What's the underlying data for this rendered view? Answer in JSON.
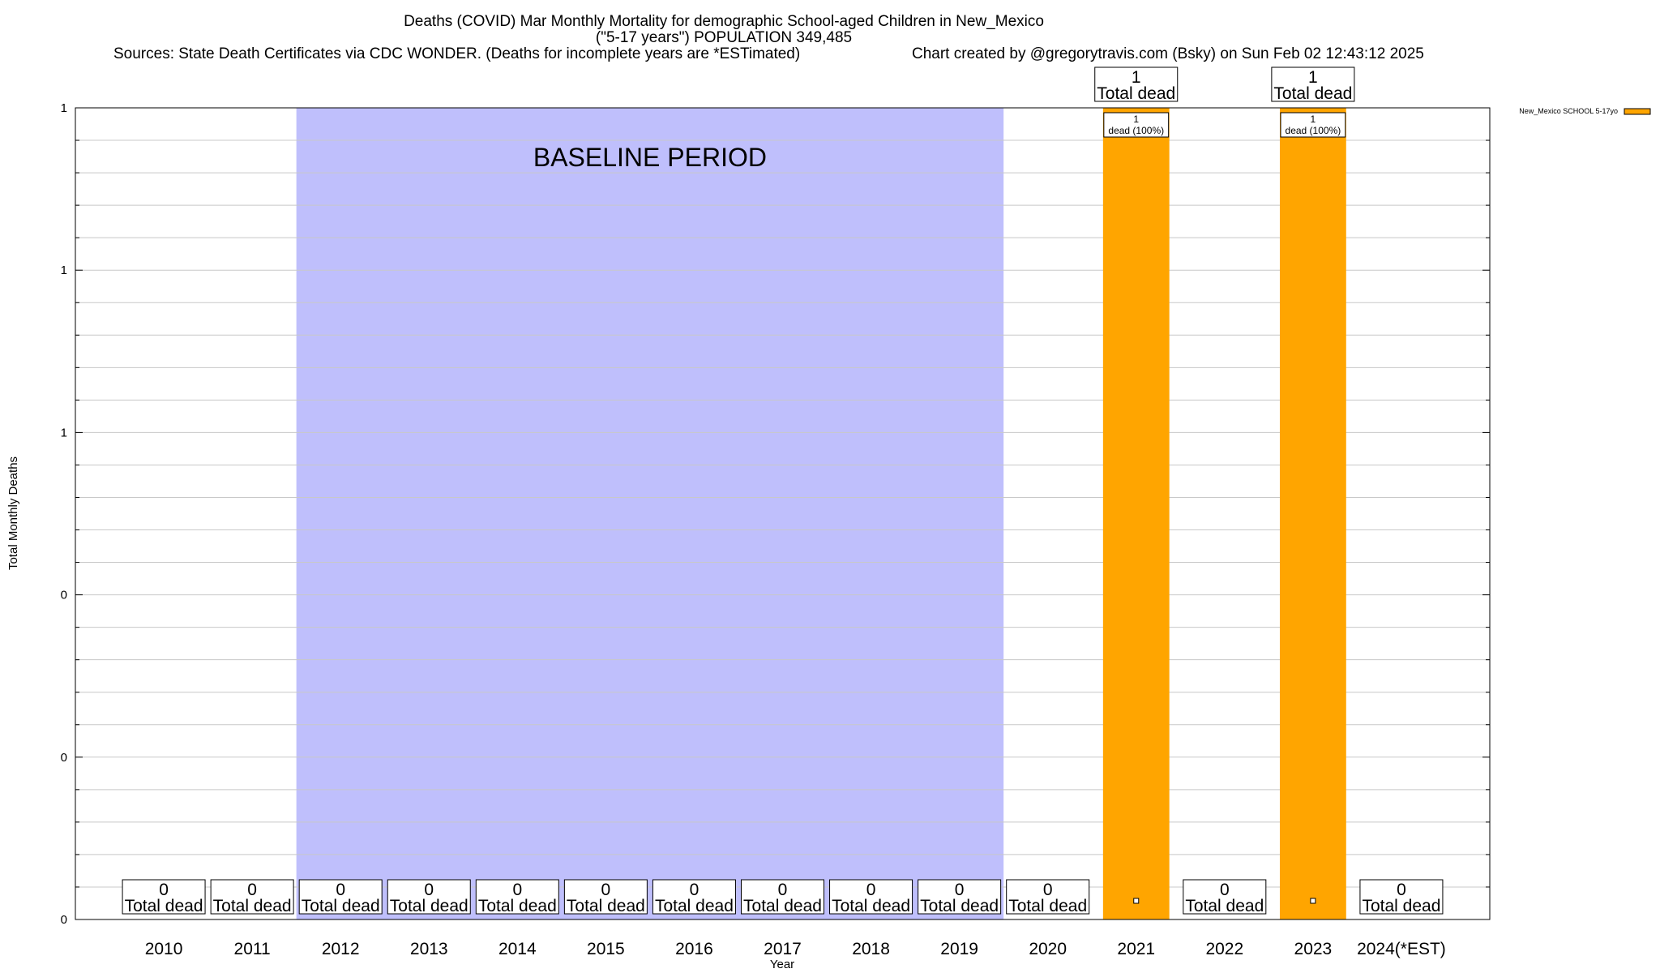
{
  "header": {
    "title_line1": "Deaths (COVID) Mar Monthly Mortality for demographic School-aged Children in New_Mexico",
    "title_line2": "(\"5-17 years\") POPULATION 349,485",
    "sources": "Sources: State Death Certificates via CDC WONDER. (Deaths for incomplete years are *ESTimated)",
    "credit": "Chart created by @gregorytravis.com (Bsky) on Sun Feb 02 12:43:12 2025"
  },
  "colors": {
    "bar": "#ffa500",
    "baseline_shade": "#bfbffc",
    "grid": "#c8c8c8",
    "axis": "#000000"
  },
  "chart_data": {
    "type": "bar",
    "title": "Deaths (COVID) Mar Monthly Mortality for demographic School-aged Children in New_Mexico",
    "xlabel": "Year",
    "ylabel": "Total Monthly Deaths",
    "categories": [
      "2010",
      "2011",
      "2012",
      "2013",
      "2014",
      "2015",
      "2016",
      "2017",
      "2018",
      "2019",
      "2020",
      "2021",
      "2022",
      "2023",
      "2024(*EST)"
    ],
    "series": [
      {
        "name": "New_Mexico SCHOOL 5-17yo",
        "values": [
          0,
          0,
          0,
          0,
          0,
          0,
          0,
          0,
          0,
          0,
          0,
          1,
          0,
          1,
          0
        ]
      }
    ],
    "ylim": [
      0,
      1
    ],
    "yticks": [
      0,
      0.2,
      0.4,
      0.6,
      0.8,
      1
    ],
    "ytick_labels": [
      "0",
      "0",
      "0",
      "1",
      "1",
      "1"
    ],
    "grid": true,
    "legend_position": "top-right",
    "baseline_period": {
      "label": "BASELINE PERIOD",
      "start": "2012",
      "end": "2019"
    },
    "total_label_suffix": "Total dead",
    "segment_label": "dead (100%)"
  }
}
